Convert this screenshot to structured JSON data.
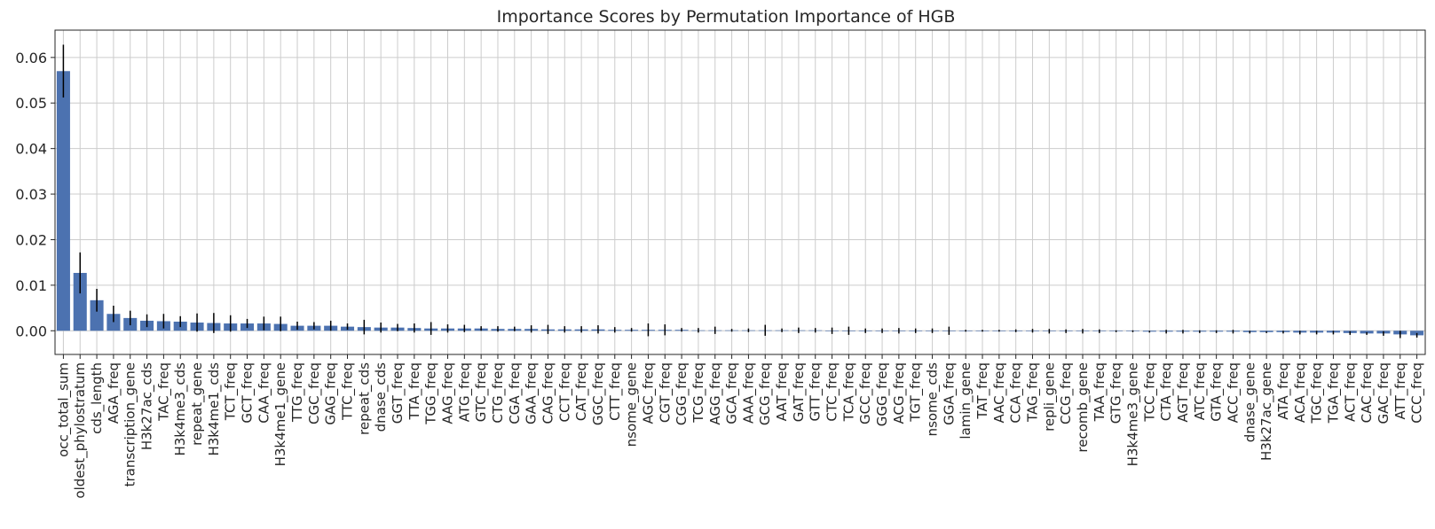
{
  "chart_data": {
    "type": "bar",
    "title": "Importance Scores by Permutation Importance of HGB",
    "xlabel": "",
    "ylabel": "",
    "ylim": [
      -0.0052,
      0.066
    ],
    "yticks": [
      0.0,
      0.01,
      0.02,
      0.03,
      0.04,
      0.05,
      0.06
    ],
    "ytick_labels": [
      "0.00",
      "0.01",
      "0.02",
      "0.03",
      "0.04",
      "0.05",
      "0.06"
    ],
    "grid": true,
    "legend": "none",
    "bar_color": "#4c72b0",
    "error_color": "#000000",
    "categories": [
      "occ_total_sum",
      "oldest_phylostratum",
      "cds_length",
      "AGA_freq",
      "transcription_gene",
      "H3k27ac_cds",
      "TAC_freq",
      "H3k4me3_cds",
      "repeat_gene",
      "H3k4me1_cds",
      "TCT_freq",
      "GCT_freq",
      "CAA_freq",
      "H3k4me1_gene",
      "TTG_freq",
      "CGC_freq",
      "GAG_freq",
      "TTC_freq",
      "repeat_cds",
      "dnase_cds",
      "GGT_freq",
      "TTA_freq",
      "TGG_freq",
      "AAG_freq",
      "ATG_freq",
      "GTC_freq",
      "CTG_freq",
      "CGA_freq",
      "GAA_freq",
      "CAG_freq",
      "CCT_freq",
      "CAT_freq",
      "GGC_freq",
      "CTT_freq",
      "nsome_gene",
      "AGC_freq",
      "CGT_freq",
      "CGG_freq",
      "TCG_freq",
      "AGG_freq",
      "GCA_freq",
      "AAA_freq",
      "GCG_freq",
      "AAT_freq",
      "GAT_freq",
      "GTT_freq",
      "CTC_freq",
      "TCA_freq",
      "GCC_freq",
      "GGG_freq",
      "ACG_freq",
      "TGT_freq",
      "nsome_cds",
      "GGA_freq",
      "lamin_gene",
      "TAT_freq",
      "AAC_freq",
      "CCA_freq",
      "TAG_freq",
      "repli_gene",
      "CCG_freq",
      "recomb_gene",
      "TAA_freq",
      "GTG_freq",
      "H3k4me3_gene",
      "TCC_freq",
      "CTA_freq",
      "AGT_freq",
      "ATC_freq",
      "GTA_freq",
      "ACC_freq",
      "dnase_gene",
      "H3k27ac_gene",
      "ATA_freq",
      "ACA_freq",
      "TGC_freq",
      "TGA_freq",
      "ACT_freq",
      "CAC_freq",
      "GAC_freq",
      "ATT_freq",
      "CCC_freq"
    ],
    "values": [
      0.057,
      0.0127,
      0.0067,
      0.0037,
      0.0028,
      0.0022,
      0.0021,
      0.002,
      0.0018,
      0.0017,
      0.0016,
      0.0016,
      0.0016,
      0.0015,
      0.0011,
      0.0011,
      0.0011,
      0.0009,
      0.0008,
      0.0007,
      0.0007,
      0.0006,
      0.0005,
      0.0005,
      0.0005,
      0.0005,
      0.0004,
      0.0004,
      0.0004,
      0.0003,
      0.0003,
      0.0003,
      0.0003,
      0.0002,
      0.0002,
      0.0002,
      0.0002,
      0.0002,
      0.0001,
      0.0001,
      0.0001,
      0.0001,
      0.0001,
      0.0001,
      0.0001,
      0.0001,
      0.0,
      0.0,
      0.0,
      0.0,
      0.0,
      0.0,
      0.0,
      0.0,
      0.0,
      0.0,
      0.0,
      0.0,
      0.0,
      -0.0001,
      -0.0001,
      -0.0001,
      -0.0001,
      -0.0001,
      -0.0001,
      -0.0002,
      -0.0002,
      -0.0002,
      -0.0002,
      -0.0002,
      -0.0002,
      -0.0003,
      -0.0003,
      -0.0003,
      -0.0004,
      -0.0004,
      -0.0004,
      -0.0005,
      -0.0006,
      -0.0006,
      -0.0008,
      -0.001
    ],
    "errors": [
      0.0058,
      0.0045,
      0.0025,
      0.0018,
      0.0016,
      0.0014,
      0.0016,
      0.0012,
      0.002,
      0.0022,
      0.0018,
      0.001,
      0.0015,
      0.0016,
      0.0009,
      0.0008,
      0.0011,
      0.0007,
      0.0016,
      0.0011,
      0.0008,
      0.001,
      0.0014,
      0.0009,
      0.0008,
      0.0005,
      0.0006,
      0.0005,
      0.0008,
      0.001,
      0.0007,
      0.0007,
      0.0009,
      0.0006,
      0.0004,
      0.0014,
      0.0012,
      0.0004,
      0.0005,
      0.0008,
      0.0003,
      0.0004,
      0.0012,
      0.0004,
      0.0006,
      0.0005,
      0.0007,
      0.0009,
      0.0005,
      0.0005,
      0.0006,
      0.0005,
      0.0005,
      0.0009,
      0.0002,
      0.0002,
      0.0002,
      0.0003,
      0.0004,
      0.0005,
      0.0004,
      0.0005,
      0.0004,
      0.0002,
      0.0002,
      0.0002,
      0.0004,
      0.0004,
      0.0003,
      0.0003,
      0.0004,
      0.0003,
      0.0002,
      0.0003,
      0.0004,
      0.0004,
      0.0004,
      0.0004,
      0.0003,
      0.0005,
      0.0008,
      0.0005
    ]
  }
}
